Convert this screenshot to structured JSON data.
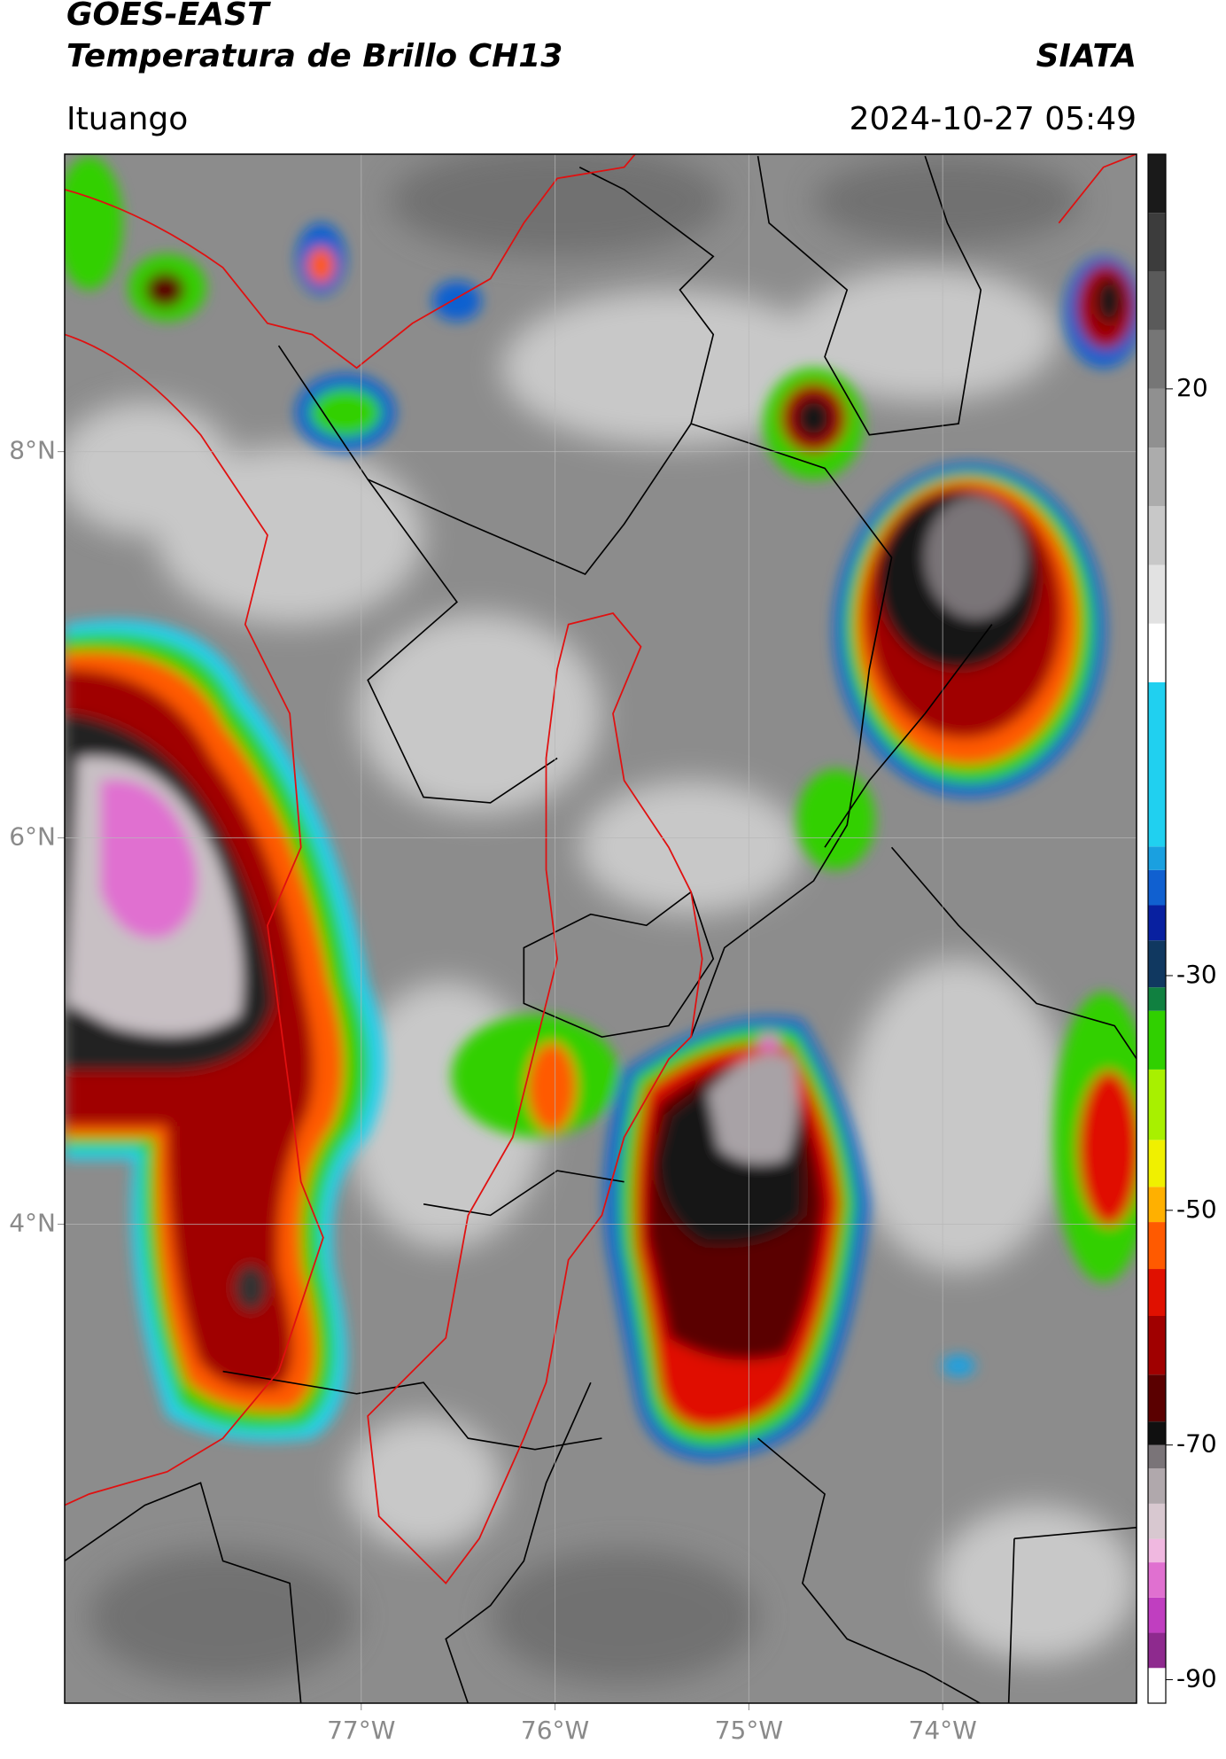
{
  "header": {
    "title": "GOES-EAST",
    "subtitle": "Temperatura de Brillo CH13",
    "agency": "SIATA",
    "location": "Ituango",
    "timestamp": "2024-10-27 05:49"
  },
  "map": {
    "xlim": [
      -78.53,
      -73.0
    ],
    "ylim": [
      1.52,
      9.54
    ],
    "xticks": [
      {
        "value": -77,
        "label": "77°W"
      },
      {
        "value": -76,
        "label": "76°W"
      },
      {
        "value": -75,
        "label": "75°W"
      },
      {
        "value": -74,
        "label": "74°W"
      }
    ],
    "yticks": [
      {
        "value": 8,
        "label": "8°N"
      },
      {
        "value": 6,
        "label": "6°N"
      },
      {
        "value": 4,
        "label": "4°N"
      }
    ],
    "grid": true
  },
  "colorbar": {
    "lim": [
      -92,
      40
    ],
    "ticks": [
      20,
      -30,
      -50,
      -70,
      -90
    ],
    "levels": [
      -92,
      -89,
      -86,
      -83,
      -80,
      -78,
      -75,
      -72,
      -70,
      -68,
      -64,
      -59,
      -55,
      -51,
      -48,
      -44,
      -38,
      -33,
      -31,
      -27,
      -24,
      -21,
      -19,
      -5,
      0,
      5,
      10,
      15,
      20,
      25,
      30,
      35
    ],
    "colors": [
      "#ffffff",
      "#8e2a8e",
      "#c03ec0",
      "#e070d0",
      "#f0b8e0",
      "#d8c8d0",
      "#b0a8ac",
      "#7a7478",
      "#101010",
      "#5a0000",
      "#a00000",
      "#e01000",
      "#ff5a00",
      "#ffb000",
      "#f0f000",
      "#a8f000",
      "#30d000",
      "#108040",
      "#103860",
      "#0820a0",
      "#1060d0",
      "#1aa0e0",
      "#20d0f0",
      "#ffffff",
      "#e2e2e2",
      "#c8c8c8",
      "#acacac",
      "#909090",
      "#767676",
      "#5a5a5a",
      "#3c3c3c",
      "#1a1a1a"
    ]
  }
}
